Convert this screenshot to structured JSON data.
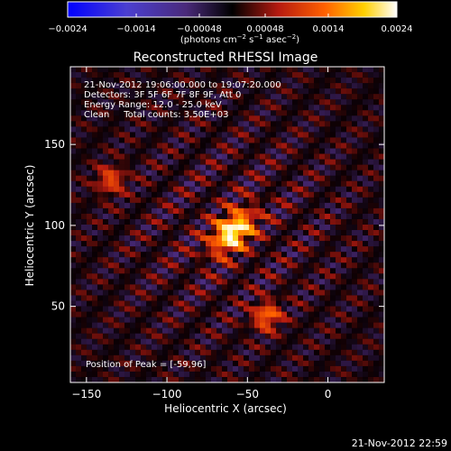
{
  "chart_data": {
    "type": "heatmap",
    "title": "Reconstructed RHESSI Image",
    "xlabel": "Heliocentric X (arcsec)",
    "ylabel": "Heliocentric Y (arcsec)",
    "xlim": [
      -160,
      35
    ],
    "ylim": [
      3,
      198
    ],
    "x_ticks": [
      -150,
      -100,
      -50,
      0
    ],
    "x_tick_labels": [
      "−150",
      "−100",
      "−50",
      "0"
    ],
    "y_ticks": [
      50,
      100,
      150
    ],
    "y_tick_labels": [
      "50",
      "100",
      "150"
    ],
    "colorbar": {
      "range": [
        -0.0024,
        0.0024
      ],
      "ticks": [
        -0.0024,
        -0.0014,
        -0.00048,
        0.00048,
        0.0014,
        0.0024
      ],
      "tick_labels": [
        "−0.0024",
        "−0.0014",
        "−0.00048",
        "0.00048",
        "0.0014",
        "0.0024"
      ],
      "units_main": "(photons cm",
      "units_sup1": "−2",
      "units_mid1": " s",
      "units_sup2": "−1",
      "units_mid2": " asec",
      "units_sup3": "−2",
      "units_end": ")"
    },
    "annotations": [
      "21-Nov-2012 19:06:00.000 to 19:07:20.000",
      "Detectors: 3F 5F 6F 7F 8F 9F, Att 0",
      "Energy Range: 12.0 - 25.0 keV",
      "Clean     Total counts: 3.50E+03"
    ],
    "peak_label": "Position of Peak = [-59,96]",
    "peak": {
      "x": -59,
      "y": 96,
      "value": 0.0024
    },
    "secondary_sources": [
      {
        "x": -38,
        "y": 44,
        "value": 0.0014
      },
      {
        "x": -135,
        "y": 128,
        "value": 0.0011
      }
    ],
    "colormap": "rhessi-thermal (blue-purple-black-red-orange-yellow-white)"
  },
  "footer": {
    "timestamp": "21-Nov-2012 22:59"
  }
}
